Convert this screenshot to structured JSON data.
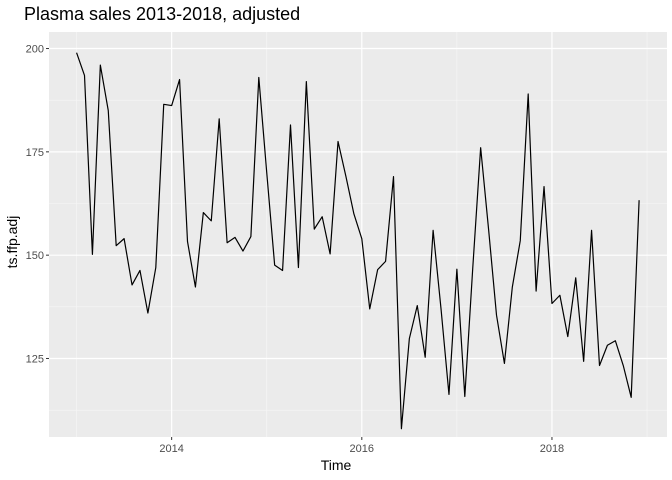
{
  "chart_data": {
    "type": "line",
    "title": "Plasma sales 2013-2018, adjusted",
    "xlabel": "Time",
    "ylabel": "ts.ffp.adj",
    "xlim": [
      2012.71,
      2019.21
    ],
    "ylim": [
      106,
      204
    ],
    "x_ticks": [
      2014,
      2016,
      2018
    ],
    "x_tick_labels": [
      "2014",
      "2016",
      "2018"
    ],
    "y_ticks": [
      125,
      150,
      175,
      200
    ],
    "y_tick_labels": [
      "125",
      "150",
      "175",
      "200"
    ],
    "grid": true,
    "legend": "none",
    "x_start": 2013,
    "x_step": 0.0833333,
    "series": [
      {
        "values": [
          199,
          193.5,
          150.2,
          196,
          185,
          152.3,
          154,
          142.8,
          146.3,
          136,
          147,
          186.5,
          186.2,
          192.5,
          153.3,
          142.3,
          160.3,
          158.3,
          183,
          153,
          154.3,
          151,
          154.5,
          193,
          170,
          147.6,
          146.3,
          181.5,
          147,
          192,
          156.3,
          159.3,
          150.3,
          177.5,
          169,
          160,
          154,
          137,
          146.5,
          148.5,
          169,
          108,
          129.8,
          137.8,
          125.3,
          156,
          137,
          116.3,
          146.6,
          115.8,
          146.8,
          176,
          156.3,
          135.5,
          123.8,
          142.3,
          153.5,
          189,
          141.3,
          166.6,
          138.3,
          140.3,
          130.3,
          144.5,
          124.3,
          156,
          123.3,
          128.2,
          129.3,
          123.3,
          115.6,
          163.3
        ]
      }
    ],
    "colors": {
      "line": "#000000",
      "panel_background": "#ebebeb",
      "grid_major": "#ffffff",
      "grid_minor": "#f7f7f7",
      "tick_text": "#4d4d4d",
      "tick_mark": "#333333"
    }
  }
}
